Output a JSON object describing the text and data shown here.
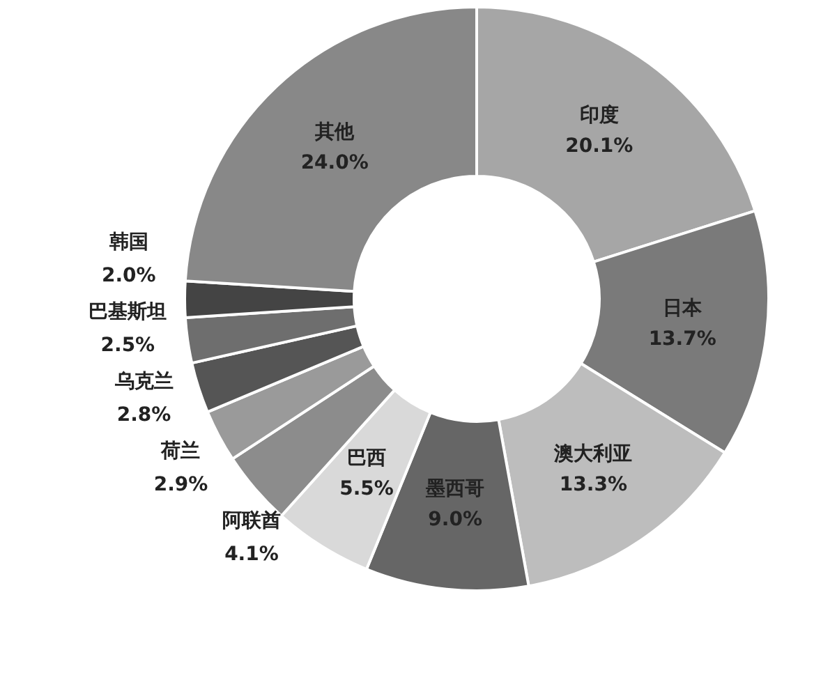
{
  "chart_data": {
    "type": "donut",
    "categories": [
      "印度",
      "日本",
      "澳大利亚",
      "墨西哥",
      "巴西",
      "阿联酋",
      "荷兰",
      "乌克兰",
      "巴基斯坦",
      "韩国",
      "其他"
    ],
    "values": [
      20.1,
      13.7,
      13.3,
      9.0,
      5.5,
      4.1,
      2.9,
      2.8,
      2.5,
      2.0,
      24.0
    ],
    "value_labels": [
      "20.1%",
      "13.7%",
      "13.3%",
      "9.0%",
      "5.5%",
      "4.1%",
      "2.9%",
      "2.8%",
      "2.5%",
      "2.0%",
      "24.0%"
    ],
    "colors": [
      "#a6a6a6",
      "#7a7a7a",
      "#bdbdbd",
      "#666666",
      "#d9d9d9",
      "#8c8c8c",
      "#9a9a9a",
      "#555555",
      "#6e6e6e",
      "#444444",
      "#888888"
    ],
    "legend": false
  }
}
